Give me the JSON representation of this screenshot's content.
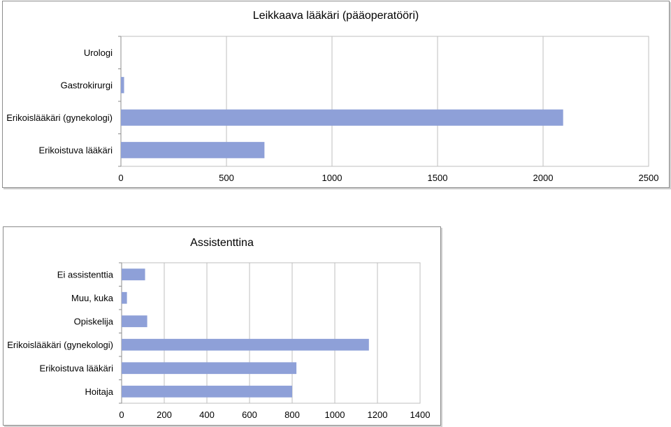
{
  "chart_data": [
    {
      "type": "bar",
      "orientation": "horizontal",
      "title": "Leikkaava lääkäri (pääoperatööri)",
      "categories": [
        "Urologi",
        "Gastrokirurgi",
        "Erikoislääkäri (gynekologi)",
        "Erikoistuva lääkäri"
      ],
      "values": [
        0,
        15,
        2095,
        680
      ],
      "xlim": [
        0,
        2500
      ],
      "xticks": [
        0,
        500,
        1000,
        1500,
        2000,
        2500
      ],
      "grid": true,
      "color": "#8ea0d8"
    },
    {
      "type": "bar",
      "orientation": "horizontal",
      "title": "Assistenttina",
      "categories": [
        "Ei assistenttia",
        "Muu, kuka",
        "Opiskelija",
        "Erikoislääkäri (gynekologi)",
        "Erikoistuva lääkäri",
        "Hoitaja"
      ],
      "values": [
        110,
        25,
        120,
        1160,
        820,
        800
      ],
      "xlim": [
        0,
        1400
      ],
      "xticks": [
        0,
        200,
        400,
        600,
        800,
        1000,
        1200,
        1400
      ],
      "grid": true,
      "color": "#8ea0d8"
    }
  ]
}
